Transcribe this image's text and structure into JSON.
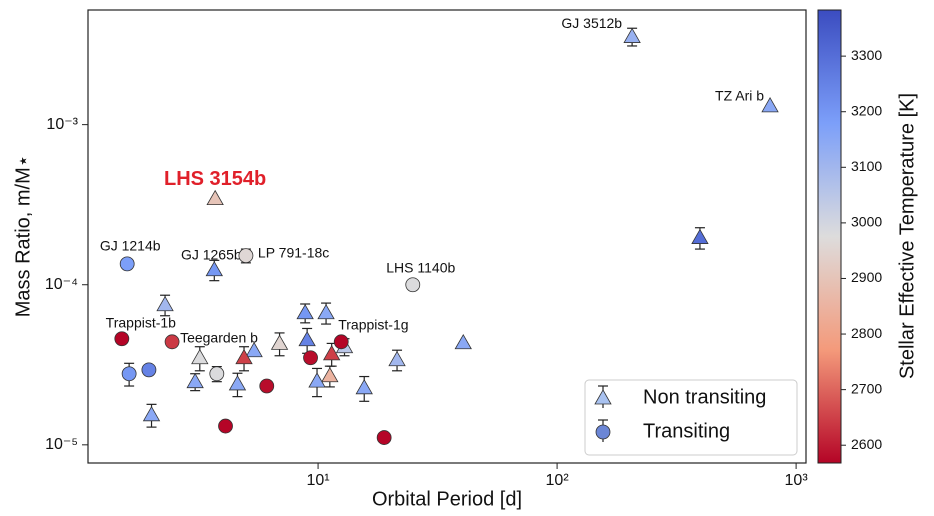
{
  "chart_data": {
    "type": "scatter",
    "x_label": "Orbital Period [d]",
    "y_label": "Mass Ratio, m/M⋆",
    "x_log": true,
    "y_log": true,
    "xlim": [
      1.09,
      1100
    ],
    "ylim": [
      7.7e-06,
      0.0052
    ],
    "xticks": [
      {
        "value": 10,
        "label": "10¹"
      },
      {
        "value": 100,
        "label": "10²"
      },
      {
        "value": 1000,
        "label": "10³"
      }
    ],
    "yticks": [
      {
        "value": 1e-05,
        "label": "10⁻⁵"
      },
      {
        "value": 0.0001,
        "label": "10⁻⁴"
      },
      {
        "value": 0.001,
        "label": "10⁻³"
      }
    ],
    "colorbar": {
      "label": "Stellar Effective Temperature [K]",
      "colormap": "coolwarm_r",
      "clim": [
        2568,
        3383
      ],
      "ticks": [
        2600,
        2700,
        2800,
        2900,
        3000,
        3100,
        3200,
        3300
      ]
    },
    "legend": "lower right",
    "series": [
      {
        "name": "Non transiting",
        "marker": "triangle",
        "color": "#a9c2f0",
        "x": [
          206,
          778,
          396,
          3.71,
          3.68,
          2.29,
          8.83,
          10.8,
          40.5,
          5.4,
          6.9,
          4.9,
          3.2,
          3.06,
          4.6,
          9.0,
          11.4,
          11.2,
          9.9,
          12.9,
          15.6,
          21.4,
          2.01
        ],
        "values": [
          0.00355,
          0.00131,
          0.000197,
          0.000345,
          0.000124,
          7.5e-05,
          6.68e-05,
          6.68e-05,
          4.34e-05,
          3.87e-05,
          4.3e-05,
          3.5e-05,
          3.5e-05,
          2.48e-05,
          2.4e-05,
          4.53e-05,
          3.7e-05,
          2.7e-05,
          2.5e-05,
          4.1e-05,
          2.27e-05,
          3.4e-05,
          1.54e-05
        ],
        "yerr": [
          0.00045,
          null,
          3e-05,
          null,
          1.8e-05,
          1.1e-05,
          9e-06,
          1e-05,
          null,
          null,
          7e-06,
          6e-06,
          6e-06,
          3e-06,
          4e-06,
          8e-06,
          6e-06,
          4e-06,
          5e-06,
          5e-06,
          4e-06,
          5e-06,
          2.5e-06
        ],
        "temps": [
          3120,
          3150,
          3300,
          2900,
          3200,
          3100,
          3200,
          3150,
          3150,
          3150,
          2950,
          2650,
          2980,
          3150,
          3150,
          3250,
          2650,
          2850,
          3150,
          3050,
          3150,
          3100,
          3150
        ],
        "labels": [
          "GJ 3512b",
          "TZ Ari b",
          null,
          "LHS 3154b",
          "GJ 1265b",
          null,
          null,
          null,
          null,
          null,
          null,
          null,
          null,
          null,
          null,
          null,
          null,
          null,
          null,
          null,
          null,
          null,
          null
        ]
      },
      {
        "name": "Transiting",
        "marker": "circle",
        "color": "#6b86d6",
        "x": [
          1.59,
          4.99,
          24.9,
          1.51,
          2.45,
          12.5,
          1.62,
          1.96,
          3.77,
          6.1,
          9.3,
          4.1,
          18.9
        ],
        "values": [
          0.000135,
          0.000152,
          0.0001,
          4.6e-05,
          4.4e-05,
          4.4e-05,
          2.78e-05,
          2.94e-05,
          2.78e-05,
          2.33e-05,
          3.5e-05,
          1.31e-05,
          1.11e-05
        ],
        "yerr": [
          null,
          1.5e-05,
          null,
          null,
          null,
          null,
          4.5e-06,
          2e-06,
          3e-06,
          null,
          null,
          null,
          null
        ],
        "temps": [
          3180,
          2960,
          2980,
          2560,
          2640,
          2560,
          3200,
          3250,
          2980,
          2580,
          2580,
          2570,
          2570
        ],
        "labels": [
          "GJ 1214b",
          "LP 791-18c",
          "LHS 1140b",
          "Trappist-1b",
          "Teegarden b",
          "Trappist-1g",
          null,
          null,
          null,
          null,
          null,
          null,
          null
        ]
      }
    ]
  }
}
